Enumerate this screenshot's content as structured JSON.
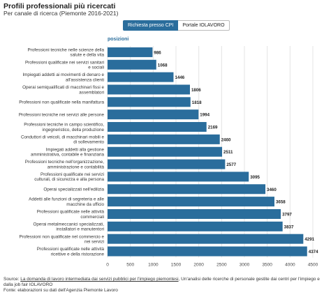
{
  "header": {
    "title": "Profili professionali più ricercati",
    "subtitle": "Per canale di ricerca (Piemonte 2016-2021)"
  },
  "tabs": [
    {
      "label": "Richiesta presso CPI",
      "active": true
    },
    {
      "label": "Portale IOLAVORO",
      "active": false
    }
  ],
  "legend": {
    "label": "posizioni"
  },
  "colors": {
    "bar": "#2a6d9c",
    "accent": "#2a6d9c"
  },
  "chart_data": {
    "type": "bar",
    "orientation": "horizontal",
    "categories": [
      "Professioni tecniche nelle scienze della salute e della vita",
      "Professioni qualificate nei servizi sanitari e sociali",
      "Impiegati addetti ai movimenti di denaro e all'assistenza clienti",
      "Operai semiqualificati di macchinari fissi e assemblatori",
      "Professioni non qualificate nella manifattura",
      "Professioni tecniche nei servizi alle persone",
      "Professioni tecniche in campo scientifico, ingegneristico, della produzione",
      "Conduttori di veicoli, di macchinari mobili e di sollevamento",
      "Impiegati addetti alla gestione amministrativa, contabile e finanziaria",
      "Professioni tecniche nell'organizzazione, amministrazione e contabilità",
      "Professioni qualificate nei servizi culturali, di sicurezza e alla persona",
      "Operai specializzati nell'edilizia",
      "Addetti alle funzioni di segreteria e alle macchine da ufficio",
      "Professioni qualificate nelle attività commerciali",
      "Operai metalmeccanici specializzati, installatori e manutentori",
      "Professioni non qualificate nel commercio e nei servizi",
      "Professioni qualificate nelle attività ricettive e della ristorazione"
    ],
    "series": [
      {
        "name": "posizioni",
        "values": [
          986,
          1068,
          1446,
          1806,
          1818,
          1994,
          2169,
          2460,
          2511,
          2577,
          3095,
          3460,
          3658,
          3797,
          3837,
          4291,
          4374
        ]
      }
    ],
    "xlim": [
      0,
      4500
    ],
    "xticks": [
      "0",
      "500",
      "1000",
      "1500",
      "2000",
      "2500",
      "3000",
      "3500",
      "4000",
      "4500"
    ],
    "grid": true,
    "legend_position": "top-left"
  },
  "source": {
    "prefix": "Source: ",
    "link_text": "La domanda di lavoro intermediata dai servizi pubblici per l'impiego piemontesi",
    "rest": ", Un'analisi delle ricerche di personale gestite dai centri per l'impiego e dalla job fair IOLAVORO",
    "fonte": "Fonte: elaborazioni su dati dell'Agenzia Piemonte Lavoro"
  }
}
